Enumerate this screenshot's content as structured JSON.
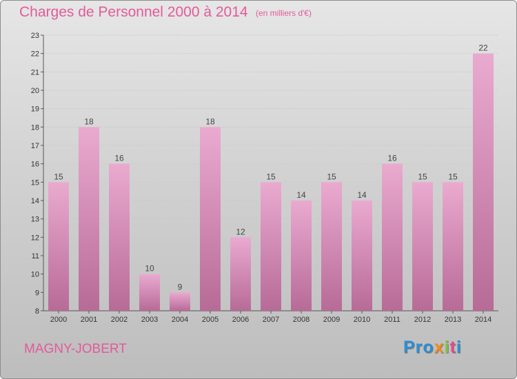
{
  "header": {
    "title": "Charges de Personnel 2000 à 2014",
    "subtitle": "(en milliers d'€)"
  },
  "footer": {
    "commune": "MAGNY-JOBERT",
    "logo_letters": [
      "Pro",
      "x",
      "i",
      "t",
      "i"
    ]
  },
  "colors": {
    "title": "#e35a9a",
    "bar_light": "#eaaad0",
    "bar_dark": "#b76b97"
  },
  "chart_data": {
    "type": "bar",
    "title": "Charges de Personnel 2000 à 2014",
    "subtitle": "(en milliers d'€)",
    "categories": [
      "2000",
      "2001",
      "2002",
      "2003",
      "2004",
      "2005",
      "2006",
      "2007",
      "2008",
      "2009",
      "2010",
      "2011",
      "2012",
      "2013",
      "2014"
    ],
    "values": [
      15,
      18,
      16,
      10,
      9,
      18,
      12,
      15,
      14,
      15,
      14,
      16,
      15,
      15,
      22
    ],
    "ylim": [
      8,
      23
    ],
    "yticks": [
      8,
      9,
      10,
      11,
      12,
      13,
      14,
      15,
      16,
      17,
      18,
      19,
      20,
      21,
      22,
      23
    ],
    "grid": true,
    "legend": "none"
  }
}
